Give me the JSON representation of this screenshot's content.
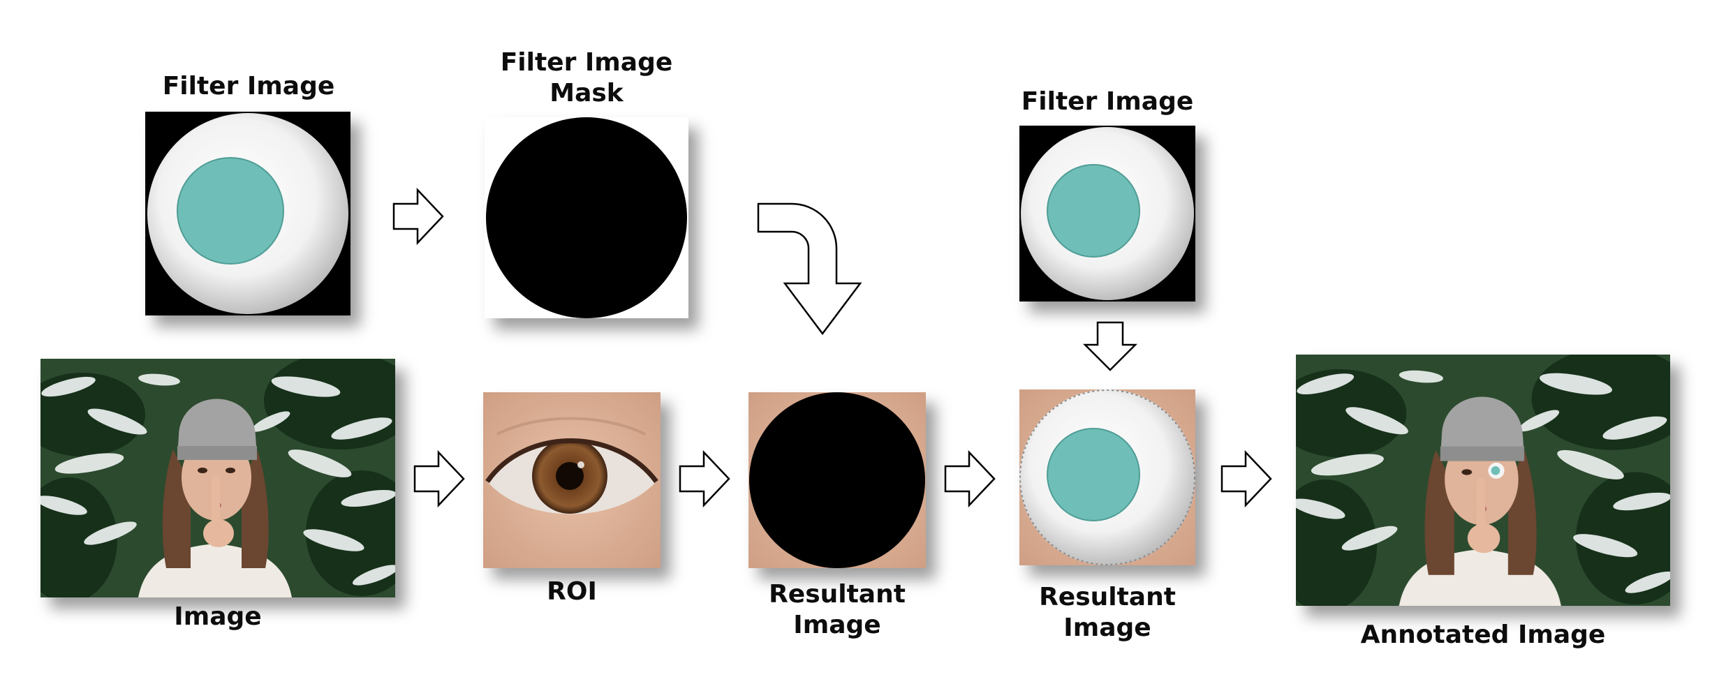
{
  "labels": {
    "filter_image_top_left": "Filter Image",
    "filter_image_mask": "Filter Image Mask",
    "filter_image_top_right": "Filter Image",
    "image": "Image",
    "roi": "ROI",
    "resultant_image_1": "Resultant Image",
    "resultant_image_2": "Resultant Image",
    "annotated_image": "Annotated Image"
  },
  "colors": {
    "iris": "#6fbfb8",
    "mask_black": "#000000",
    "skin": "#e0b49a",
    "foliage": "#1f3a22",
    "snow": "#f2f4f3",
    "sweater": "#f0ece6",
    "hat": "#9d9d9d",
    "hair": "#6b4631"
  }
}
